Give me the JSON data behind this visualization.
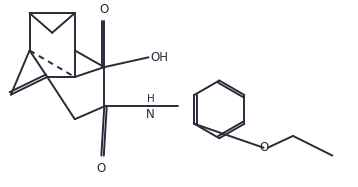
{
  "bg_color": "#ffffff",
  "line_color": "#2a2a3a",
  "line_width": 1.4,
  "figsize": [
    3.58,
    1.87
  ],
  "dpi": 100,
  "xlim": [
    0,
    10
  ],
  "ylim": [
    0,
    5.2
  ]
}
